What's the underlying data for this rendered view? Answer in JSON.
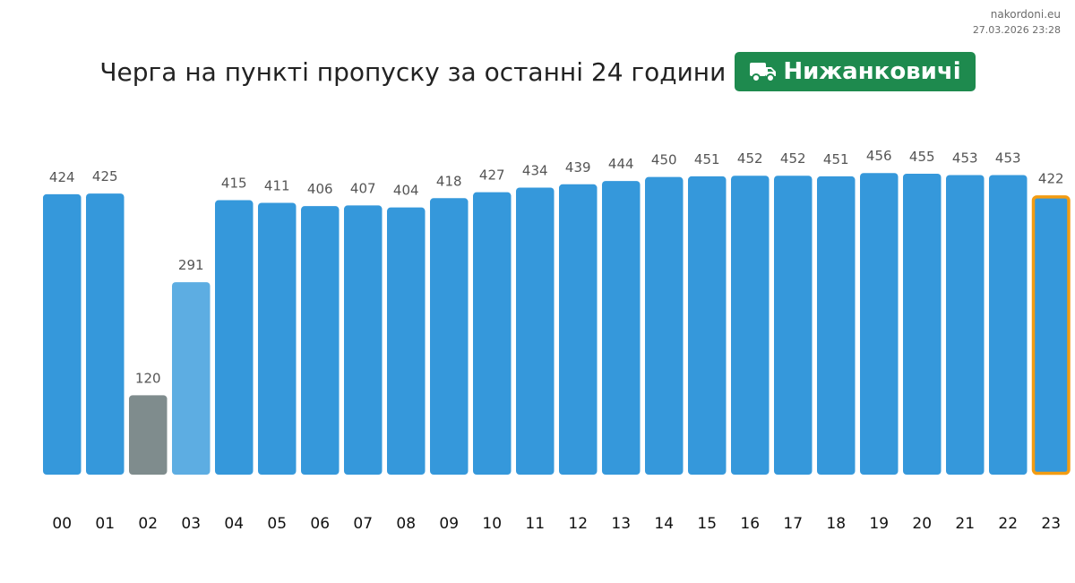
{
  "watermark": {
    "site": "nakordoni.eu",
    "timestamp": "27.03.2026 23:28"
  },
  "header": {
    "title": "Черга на пункті пропуску за останні 24 години",
    "checkpoint": "Нижанковичі",
    "badge_icon": "truck-icon"
  },
  "colors": {
    "bar": "#3598db",
    "bar_low": "#7f8c8d",
    "bar_medium": "#5dade2",
    "highlight_border": "#f39c12",
    "badge": "#1e8a4e",
    "value_label": "#555555",
    "tick_label": "#111111"
  },
  "chart_data": {
    "type": "bar",
    "categories": [
      "00",
      "01",
      "02",
      "03",
      "04",
      "05",
      "06",
      "07",
      "08",
      "09",
      "10",
      "11",
      "12",
      "13",
      "14",
      "15",
      "16",
      "17",
      "18",
      "19",
      "20",
      "21",
      "22",
      "23"
    ],
    "values": [
      424,
      425,
      120,
      291,
      415,
      411,
      406,
      407,
      404,
      418,
      427,
      434,
      439,
      444,
      450,
      451,
      452,
      452,
      451,
      456,
      455,
      453,
      453,
      422
    ],
    "bar_color_keys": [
      "bar",
      "bar",
      "bar_low",
      "bar_medium",
      "bar",
      "bar",
      "bar",
      "bar",
      "bar",
      "bar",
      "bar",
      "bar",
      "bar",
      "bar",
      "bar",
      "bar",
      "bar",
      "bar",
      "bar",
      "bar",
      "bar",
      "bar",
      "bar",
      "bar"
    ],
    "highlighted_category": "23",
    "ylim": [
      0,
      456
    ],
    "grid": false,
    "title": "",
    "xlabel": "",
    "ylabel": ""
  }
}
